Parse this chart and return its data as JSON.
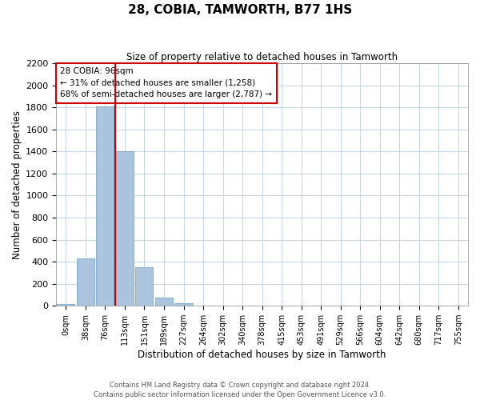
{
  "title": "28, COBIA, TAMWORTH, B77 1HS",
  "subtitle": "Size of property relative to detached houses in Tamworth",
  "xlabel": "Distribution of detached houses by size in Tamworth",
  "ylabel": "Number of detached properties",
  "bar_labels": [
    "0sqm",
    "38sqm",
    "76sqm",
    "113sqm",
    "151sqm",
    "189sqm",
    "227sqm",
    "264sqm",
    "302sqm",
    "340sqm",
    "378sqm",
    "415sqm",
    "453sqm",
    "491sqm",
    "529sqm",
    "566sqm",
    "604sqm",
    "642sqm",
    "680sqm",
    "717sqm",
    "755sqm"
  ],
  "bar_values": [
    15,
    430,
    1810,
    1400,
    350,
    75,
    25,
    0,
    0,
    0,
    0,
    0,
    0,
    0,
    0,
    0,
    0,
    0,
    0,
    0,
    0
  ],
  "bar_color": "#aac4dd",
  "bar_edge_color": "#7aaac8",
  "vline_x": 2.5,
  "vline_color": "#cc0000",
  "ylim": [
    0,
    2200
  ],
  "yticks": [
    0,
    200,
    400,
    600,
    800,
    1000,
    1200,
    1400,
    1600,
    1800,
    2000,
    2200
  ],
  "annotation_title": "28 COBIA: 96sqm",
  "annotation_line1": "← 31% of detached houses are smaller (1,258)",
  "annotation_line2": "68% of semi-detached houses are larger (2,787) →",
  "footer_line1": "Contains HM Land Registry data © Crown copyright and database right 2024.",
  "footer_line2": "Contains public sector information licensed under the Open Government Licence v3.0.",
  "background_color": "#ffffff",
  "grid_color": "#c8d8ec"
}
